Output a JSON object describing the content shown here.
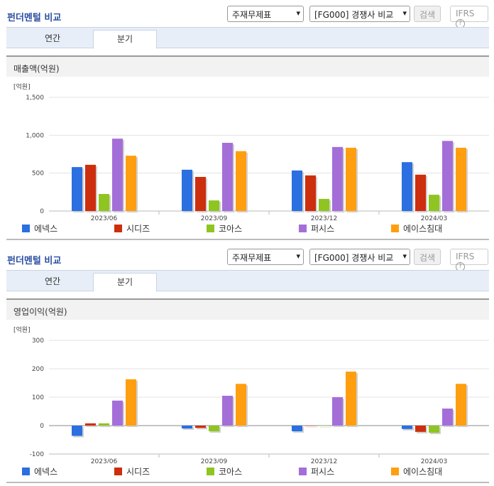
{
  "page": {
    "title": "펀더멘털 비교",
    "select_report": "주재무제표",
    "select_compare": "[FG000] 경쟁사 비교",
    "search_label": "검색",
    "ifrs_label": "IFRS",
    "tabs": [
      {
        "label": "연간"
      },
      {
        "label": "분기"
      }
    ],
    "active_tab": "분기"
  },
  "colors": {
    "에넥스": "#2b6fe0",
    "시디즈": "#cc2e0e",
    "코아스": "#8fc521",
    "퍼시스": "#a46ed8",
    "에이스침대": "#ff9f0f"
  },
  "chart_data": [
    {
      "type": "bar",
      "title": "매출액(억원)",
      "unit": "[억원]",
      "categories": [
        "2023/06",
        "2023/09",
        "2023/12",
        "2024/03"
      ],
      "ylim": [
        0,
        1500
      ],
      "yticks": [
        "1,500",
        "1,000",
        "500",
        "0"
      ],
      "ytick_values": [
        1500,
        1000,
        500,
        0
      ],
      "series": [
        {
          "name": "에넥스",
          "values": [
            580,
            545,
            535,
            645
          ]
        },
        {
          "name": "시디즈",
          "values": [
            610,
            450,
            470,
            480
          ]
        },
        {
          "name": "코아스",
          "values": [
            225,
            140,
            160,
            215
          ]
        },
        {
          "name": "퍼시스",
          "values": [
            955,
            900,
            845,
            925
          ]
        },
        {
          "name": "에이스침대",
          "values": [
            730,
            790,
            835,
            835
          ]
        }
      ]
    },
    {
      "type": "bar",
      "title": "영업이익(억원)",
      "unit": "[억원]",
      "categories": [
        "2023/06",
        "2023/09",
        "2023/12",
        "2024/03"
      ],
      "ylim": [
        -100,
        300
      ],
      "yticks": [
        "300",
        "200",
        "100",
        "0",
        "-100"
      ],
      "ytick_values": [
        300,
        200,
        100,
        0,
        -100
      ],
      "series": [
        {
          "name": "에넥스",
          "values": [
            -36,
            -10,
            -20,
            -12
          ]
        },
        {
          "name": "시디즈",
          "values": [
            8,
            -8,
            0,
            -22
          ]
        },
        {
          "name": "코아스",
          "values": [
            8,
            -20,
            0,
            -25
          ]
        },
        {
          "name": "퍼시스",
          "values": [
            88,
            105,
            100,
            60
          ]
        },
        {
          "name": "에이스침대",
          "values": [
            163,
            147,
            190,
            147
          ]
        }
      ]
    }
  ]
}
